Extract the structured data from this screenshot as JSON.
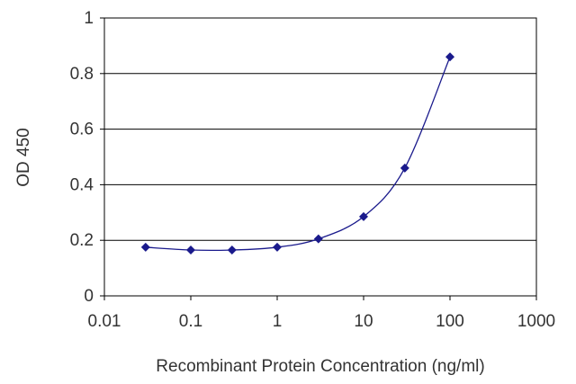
{
  "chart_data": {
    "type": "scatter",
    "title": "",
    "xlabel": "Recombinant Protein Concentration (ng/ml)",
    "ylabel": "OD 450",
    "xscale": "log",
    "xlim": [
      0.01,
      1000
    ],
    "ylim": [
      0,
      1
    ],
    "xticks": [
      0.01,
      0.1,
      1,
      10,
      100,
      1000
    ],
    "xtick_labels": [
      "0.01",
      "0.1",
      "1",
      "10",
      "100",
      "1000"
    ],
    "yticks": [
      0,
      0.2,
      0.4,
      0.6,
      0.8,
      1
    ],
    "ytick_labels": [
      "0",
      "0.2",
      "0.4",
      "0.6",
      "0.8",
      "1"
    ],
    "grid": "horizontal",
    "legend": "none",
    "series": [
      {
        "name": "",
        "color": "#1a1a8c",
        "marker": "diamond",
        "fit_line": true,
        "x": [
          0.03,
          0.1,
          0.3,
          1,
          3,
          10,
          30,
          100
        ],
        "y": [
          0.175,
          0.165,
          0.165,
          0.175,
          0.205,
          0.285,
          0.46,
          0.86
        ]
      }
    ]
  }
}
